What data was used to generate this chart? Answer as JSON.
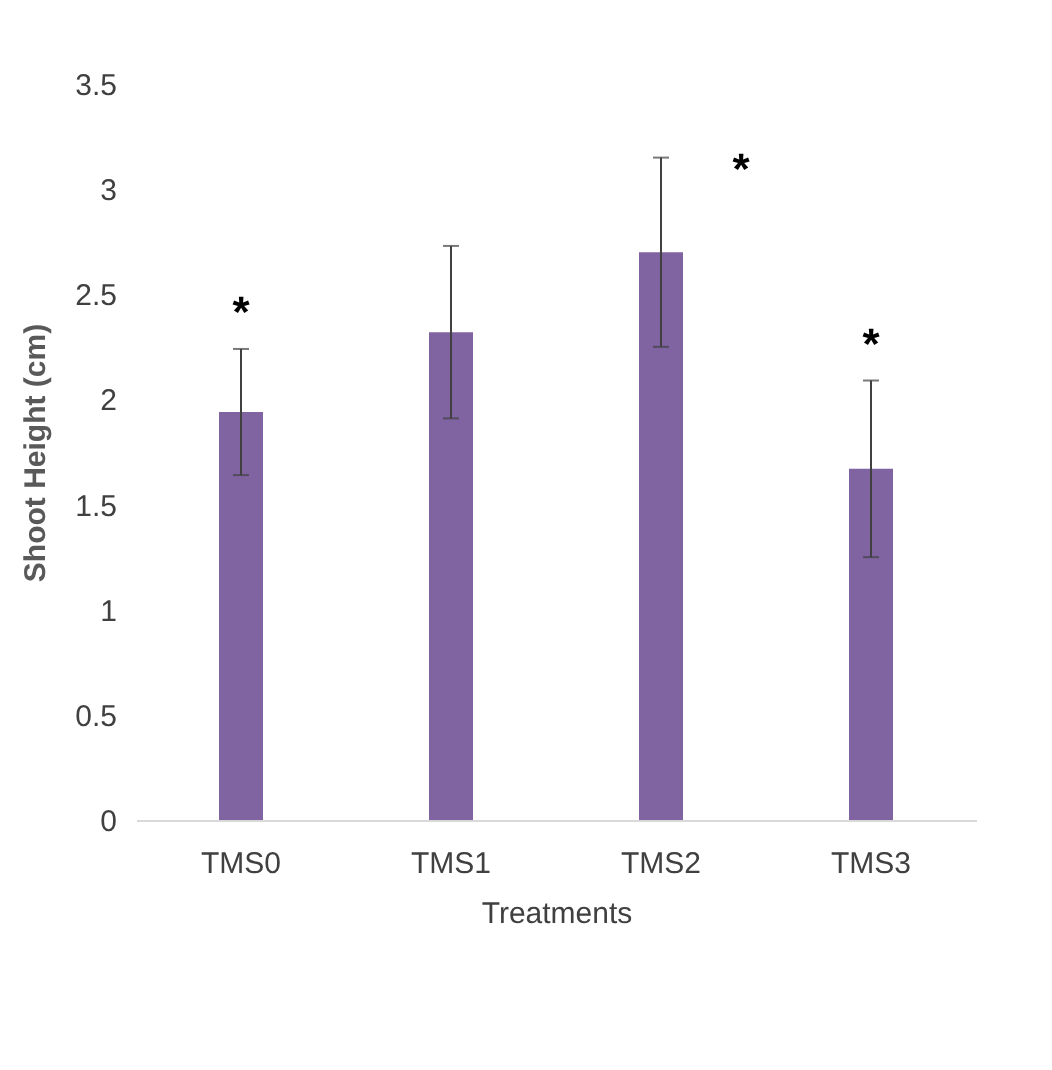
{
  "chart_data": {
    "type": "bar",
    "xlabel": "Treatments",
    "ylabel": "Shoot Height (cm)",
    "categories": [
      "TMS0",
      "TMS1",
      "TMS2",
      "TMS3"
    ],
    "values": [
      1.94,
      2.32,
      2.7,
      1.67
    ],
    "errors": [
      0.3,
      0.41,
      0.45,
      0.42
    ],
    "color": "#8064a2",
    "ylim": [
      0,
      3.5
    ],
    "yticks": [
      0,
      0.5,
      1,
      1.5,
      2,
      2.5,
      3,
      3.5
    ],
    "grid": false,
    "annotations": [
      {
        "text": "*",
        "x": "TMS0",
        "y": 2.24
      },
      {
        "text": "*",
        "x": "TMS2",
        "y": 3.15
      },
      {
        "text": "*",
        "x": "TMS3",
        "y": 2.09
      }
    ]
  }
}
